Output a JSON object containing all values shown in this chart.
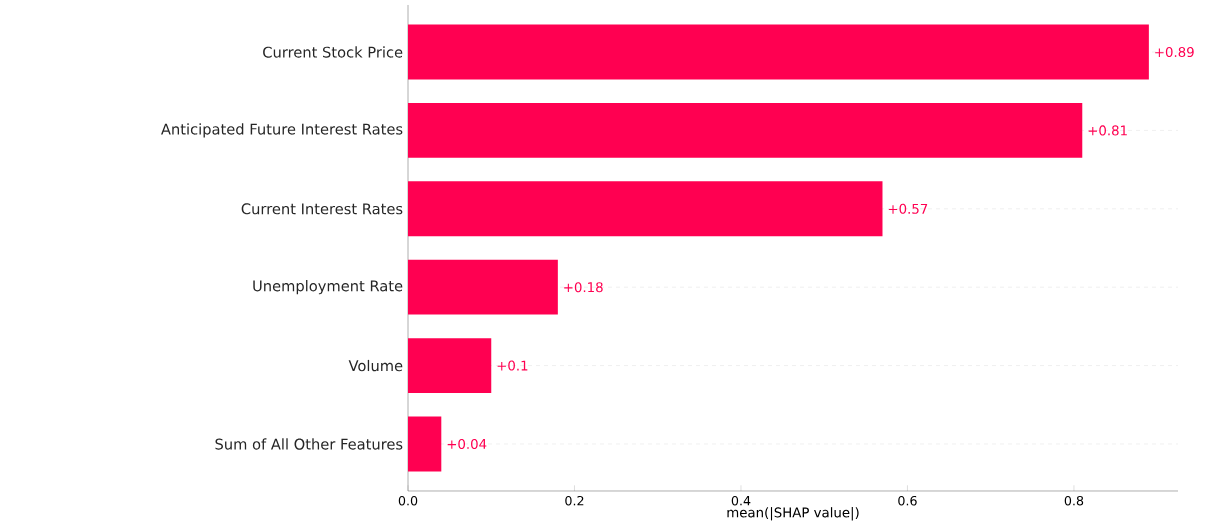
{
  "chart_data": {
    "type": "bar",
    "orientation": "horizontal",
    "xlabel": "mean(|SHAP value|)",
    "categories": [
      "Current Stock Price",
      "Anticipated Future Interest Rates",
      "Current Interest Rates",
      "Unemployment Rate",
      "Volume",
      "Sum of All Other Features"
    ],
    "values": [
      0.89,
      0.81,
      0.57,
      0.18,
      0.1,
      0.04
    ],
    "value_labels": [
      "+0.89",
      "+0.81",
      "+0.57",
      "+0.18",
      "+0.1",
      "+0.04"
    ],
    "color": "#ff0051",
    "xlim": [
      0,
      0.925
    ],
    "xticks": [
      {
        "value": 0,
        "label": "0.0"
      },
      0.2,
      0.4,
      0.6,
      0.8
    ],
    "grid": "y",
    "legend": false
  }
}
